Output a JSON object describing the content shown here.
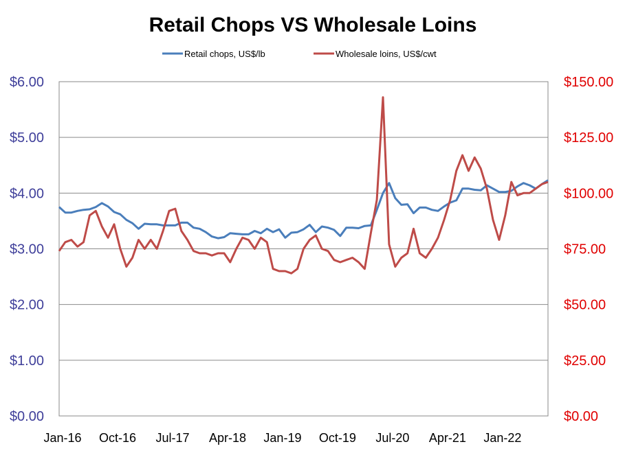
{
  "chart_data": {
    "type": "line",
    "title": "Retail Chops VS Wholesale Loins",
    "x_tick_labels": [
      "Jan-16",
      "Oct-16",
      "Jul-17",
      "Apr-18",
      "Jan-19",
      "Oct-19",
      "Jul-20",
      "Apr-21",
      "Jan-22"
    ],
    "x_range": [
      "Jan-16",
      "Jun-22"
    ],
    "y_left": {
      "ticks": [
        "$0.00",
        "$1.00",
        "$2.00",
        "$3.00",
        "$4.00",
        "$5.00",
        "$6.00"
      ],
      "ylim": [
        0,
        6
      ],
      "color": "#3f3f9a"
    },
    "y_right": {
      "ticks": [
        "$0.00",
        "$25.00",
        "$50.00",
        "$75.00",
        "$100.00",
        "$125.00",
        "$150.00"
      ],
      "ylim": [
        0,
        150
      ],
      "color": "#e00000"
    },
    "grid": true,
    "legend_position": "top",
    "series": [
      {
        "name": "Retail chops, US$/lb",
        "axis": "left",
        "color": "#4a7ebb",
        "values": [
          3.75,
          3.65,
          3.65,
          3.68,
          3.7,
          3.71,
          3.75,
          3.82,
          3.76,
          3.66,
          3.62,
          3.52,
          3.46,
          3.36,
          3.45,
          3.44,
          3.44,
          3.42,
          3.42,
          3.42,
          3.47,
          3.47,
          3.38,
          3.36,
          3.3,
          3.22,
          3.19,
          3.21,
          3.28,
          3.27,
          3.26,
          3.26,
          3.32,
          3.28,
          3.36,
          3.3,
          3.35,
          3.2,
          3.29,
          3.3,
          3.35,
          3.43,
          3.3,
          3.4,
          3.38,
          3.34,
          3.23,
          3.38,
          3.38,
          3.37,
          3.41,
          3.42,
          3.7,
          4.0,
          4.18,
          3.91,
          3.79,
          3.8,
          3.64,
          3.74,
          3.74,
          3.7,
          3.68,
          3.76,
          3.83,
          3.87,
          4.08,
          4.08,
          4.06,
          4.05,
          4.14,
          4.08,
          4.02,
          4.02,
          4.04,
          4.12,
          4.18,
          4.14,
          4.08,
          4.16,
          4.23
        ]
      },
      {
        "name": "Wholesale loins, US$/cwt",
        "axis": "right",
        "color": "#be4b48",
        "values": [
          74,
          78,
          79,
          76,
          78,
          90,
          92,
          85,
          80,
          86,
          75,
          67,
          71,
          79,
          75,
          79,
          75,
          83,
          92,
          93,
          83,
          79,
          74,
          73,
          73,
          72,
          73,
          73,
          69,
          75,
          80,
          79,
          75,
          80,
          78,
          66,
          65,
          65,
          64,
          66,
          75,
          79,
          81,
          75,
          74,
          70,
          69,
          70,
          71,
          69,
          66,
          82,
          97,
          143,
          77,
          67,
          71,
          73,
          84,
          73,
          71,
          75,
          80,
          88,
          97,
          110,
          117,
          110,
          116,
          111,
          102,
          88,
          79,
          90,
          105,
          99,
          100,
          100,
          102,
          104,
          105
        ]
      }
    ]
  }
}
